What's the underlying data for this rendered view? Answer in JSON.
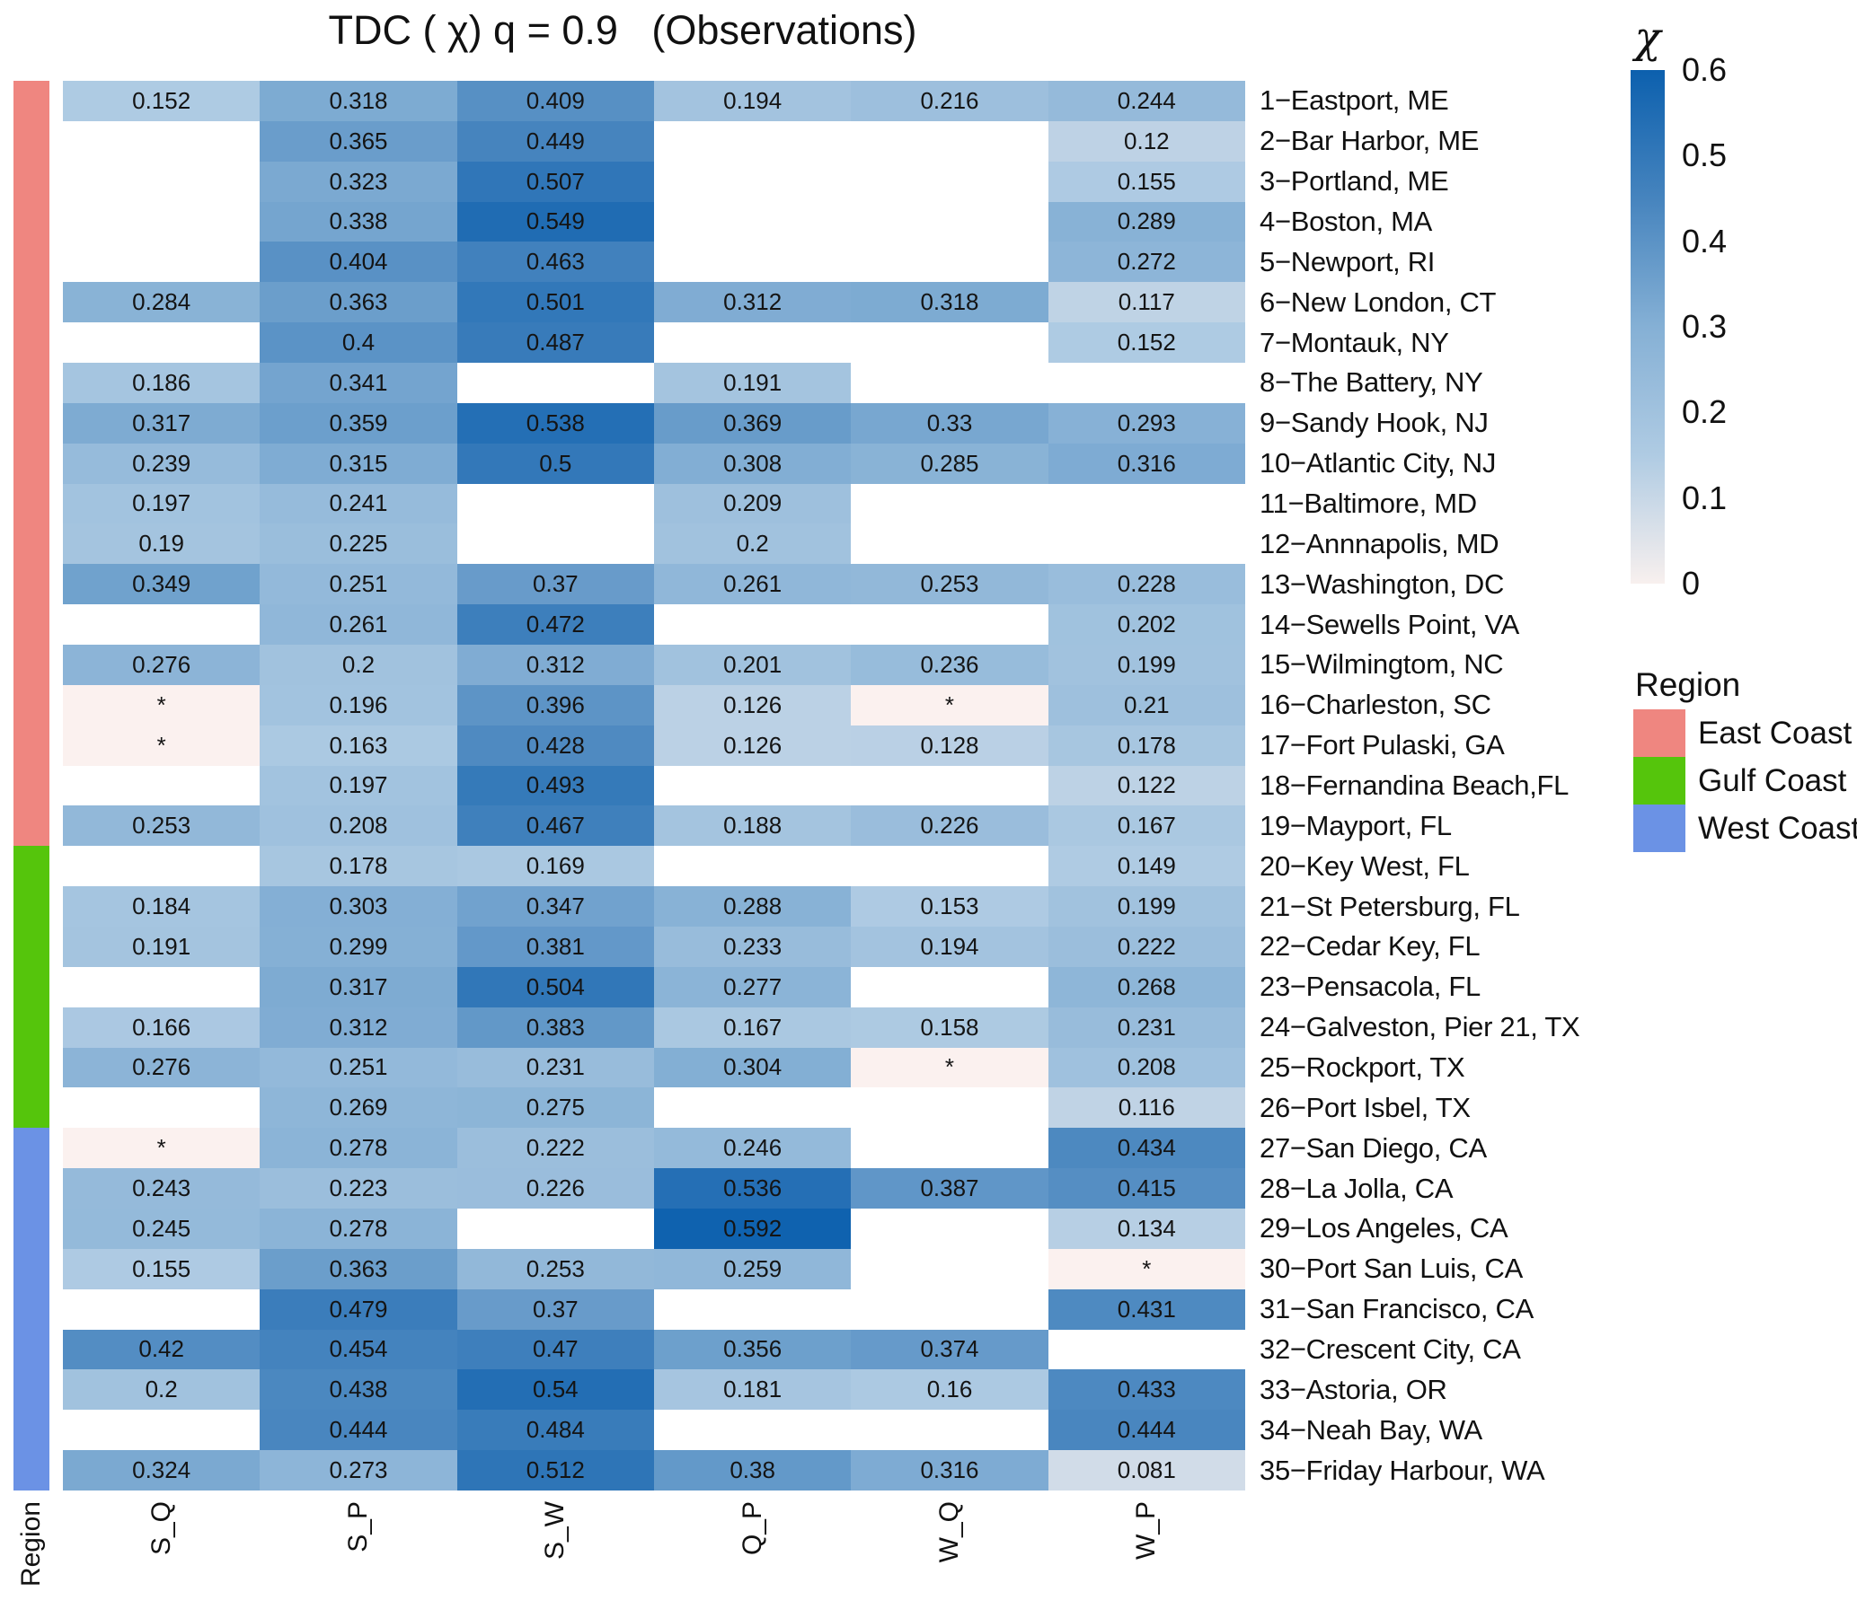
{
  "chart_data": {
    "type": "heatmap",
    "title": "TDC ( χ) q = 0.9   (Observations)",
    "columns": [
      "S_Q",
      "S_P",
      "S_W",
      "Q_P",
      "W_Q",
      "W_P"
    ],
    "region_axis_label": "Region",
    "not_significant_marker": "*",
    "rows": [
      {
        "label": "1−Eastport, ME",
        "region": "East Coast",
        "values": [
          "0.152",
          "0.318",
          "0.409",
          "0.194",
          "0.216",
          "0.244"
        ]
      },
      {
        "label": "2−Bar Harbor, ME",
        "region": "East Coast",
        "values": [
          null,
          "0.365",
          "0.449",
          null,
          null,
          "0.12"
        ]
      },
      {
        "label": "3−Portland, ME",
        "region": "East Coast",
        "values": [
          null,
          "0.323",
          "0.507",
          null,
          null,
          "0.155"
        ]
      },
      {
        "label": "4−Boston, MA",
        "region": "East Coast",
        "values": [
          null,
          "0.338",
          "0.549",
          null,
          null,
          "0.289"
        ]
      },
      {
        "label": "5−Newport, RI",
        "region": "East Coast",
        "values": [
          null,
          "0.404",
          "0.463",
          null,
          null,
          "0.272"
        ]
      },
      {
        "label": "6−New London, CT",
        "region": "East Coast",
        "values": [
          "0.284",
          "0.363",
          "0.501",
          "0.312",
          "0.318",
          "0.117"
        ]
      },
      {
        "label": "7−Montauk, NY",
        "region": "East Coast",
        "values": [
          null,
          "0.4",
          "0.487",
          null,
          null,
          "0.152"
        ]
      },
      {
        "label": "8−The Battery, NY",
        "region": "East Coast",
        "values": [
          "0.186",
          "0.341",
          null,
          "0.191",
          null,
          null
        ]
      },
      {
        "label": "9−Sandy Hook, NJ",
        "region": "East Coast",
        "values": [
          "0.317",
          "0.359",
          "0.538",
          "0.369",
          "0.33",
          "0.293"
        ]
      },
      {
        "label": "10−Atlantic City, NJ",
        "region": "East Coast",
        "values": [
          "0.239",
          "0.315",
          "0.5",
          "0.308",
          "0.285",
          "0.316"
        ]
      },
      {
        "label": "11−Baltimore, MD",
        "region": "East Coast",
        "values": [
          "0.197",
          "0.241",
          null,
          "0.209",
          null,
          null
        ]
      },
      {
        "label": "12−Annnapolis, MD",
        "region": "East Coast",
        "values": [
          "0.19",
          "0.225",
          null,
          "0.2",
          null,
          null
        ]
      },
      {
        "label": "13−Washington, DC",
        "region": "East Coast",
        "values": [
          "0.349",
          "0.251",
          "0.37",
          "0.261",
          "0.253",
          "0.228"
        ]
      },
      {
        "label": "14−Sewells Point, VA",
        "region": "East Coast",
        "values": [
          null,
          "0.261",
          "0.472",
          null,
          null,
          "0.202"
        ]
      },
      {
        "label": "15−Wilmingtom, NC",
        "region": "East Coast",
        "values": [
          "0.276",
          "0.2",
          "0.312",
          "0.201",
          "0.236",
          "0.199"
        ]
      },
      {
        "label": "16−Charleston, SC",
        "region": "East Coast",
        "values": [
          "*",
          "0.196",
          "0.396",
          "0.126",
          "*",
          "0.21"
        ]
      },
      {
        "label": "17−Fort Pulaski, GA",
        "region": "East Coast",
        "values": [
          "*",
          "0.163",
          "0.428",
          "0.126",
          "0.128",
          "0.178"
        ]
      },
      {
        "label": "18−Fernandina Beach,FL",
        "region": "East Coast",
        "values": [
          null,
          "0.197",
          "0.493",
          null,
          null,
          "0.122"
        ]
      },
      {
        "label": "19−Mayport, FL",
        "region": "East Coast",
        "values": [
          "0.253",
          "0.208",
          "0.467",
          "0.188",
          "0.226",
          "0.167"
        ]
      },
      {
        "label": "20−Key West, FL",
        "region": "Gulf Coast",
        "values": [
          null,
          "0.178",
          "0.169",
          null,
          null,
          "0.149"
        ]
      },
      {
        "label": "21−St Petersburg, FL",
        "region": "Gulf Coast",
        "values": [
          "0.184",
          "0.303",
          "0.347",
          "0.288",
          "0.153",
          "0.199"
        ]
      },
      {
        "label": "22−Cedar Key, FL",
        "region": "Gulf Coast",
        "values": [
          "0.191",
          "0.299",
          "0.381",
          "0.233",
          "0.194",
          "0.222"
        ]
      },
      {
        "label": "23−Pensacola, FL",
        "region": "Gulf Coast",
        "values": [
          null,
          "0.317",
          "0.504",
          "0.277",
          null,
          "0.268"
        ]
      },
      {
        "label": "24−Galveston, Pier 21, TX",
        "region": "Gulf Coast",
        "values": [
          "0.166",
          "0.312",
          "0.383",
          "0.167",
          "0.158",
          "0.231"
        ]
      },
      {
        "label": "25−Rockport, TX",
        "region": "Gulf Coast",
        "values": [
          "0.276",
          "0.251",
          "0.231",
          "0.304",
          "*",
          "0.208"
        ]
      },
      {
        "label": "26−Port Isbel, TX",
        "region": "Gulf Coast",
        "values": [
          null,
          "0.269",
          "0.275",
          null,
          null,
          "0.116"
        ]
      },
      {
        "label": "27−San Diego, CA",
        "region": "West Coast",
        "values": [
          "*",
          "0.278",
          "0.222",
          "0.246",
          null,
          "0.434"
        ]
      },
      {
        "label": "28−La Jolla, CA",
        "region": "West Coast",
        "values": [
          "0.243",
          "0.223",
          "0.226",
          "0.536",
          "0.387",
          "0.415"
        ]
      },
      {
        "label": "29−Los Angeles, CA",
        "region": "West Coast",
        "values": [
          "0.245",
          "0.278",
          null,
          "0.592",
          null,
          "0.134"
        ]
      },
      {
        "label": "30−Port San Luis, CA",
        "region": "West Coast",
        "values": [
          "0.155",
          "0.363",
          "0.253",
          "0.259",
          null,
          "*"
        ]
      },
      {
        "label": "31−San Francisco, CA",
        "region": "West Coast",
        "values": [
          null,
          "0.479",
          "0.37",
          null,
          null,
          "0.431"
        ]
      },
      {
        "label": "32−Crescent City, CA",
        "region": "West Coast",
        "values": [
          "0.42",
          "0.454",
          "0.47",
          "0.356",
          "0.374",
          null
        ]
      },
      {
        "label": "33−Astoria, OR",
        "region": "West Coast",
        "values": [
          "0.2",
          "0.438",
          "0.54",
          "0.181",
          "0.16",
          "0.433"
        ]
      },
      {
        "label": "34−Neah Bay, WA",
        "region": "West Coast",
        "values": [
          null,
          "0.444",
          "0.484",
          null,
          null,
          "0.444"
        ]
      },
      {
        "label": "35−Friday Harbour, WA",
        "region": "West Coast",
        "values": [
          "0.324",
          "0.273",
          "0.512",
          "0.38",
          "0.316",
          "0.081"
        ]
      }
    ],
    "colorbar": {
      "title": "χ",
      "min": 0,
      "max": 0.6,
      "ticks": [
        {
          "label": "0.6",
          "value": 0.6
        },
        {
          "label": "0.5",
          "value": 0.5
        },
        {
          "label": "0.4",
          "value": 0.4
        },
        {
          "label": "0.3",
          "value": 0.3
        },
        {
          "label": "0.2",
          "value": 0.2
        },
        {
          "label": "0.1",
          "value": 0.1
        },
        {
          "label": "0",
          "value": 0.0
        }
      ]
    },
    "region_legend": {
      "title": "Region",
      "entries": [
        {
          "label": "East Coast",
          "color": "#EF8680"
        },
        {
          "label": "Gulf Coast",
          "color": "#55C50C"
        },
        {
          "label": "West Coast",
          "color": "#6B92E5"
        }
      ]
    },
    "colors": {
      "heat_ramp": [
        [
          0.0,
          "#f8f0ee"
        ],
        [
          0.15,
          "#afcbe3"
        ],
        [
          0.3,
          "#85b0d5"
        ],
        [
          0.45,
          "#4684be"
        ],
        [
          0.6,
          "#0c60ae"
        ]
      ],
      "star_cell": "#fbf1ef",
      "missing_cell": "#ffffff",
      "text": "#141414"
    },
    "legend_position": "right",
    "grid": false
  }
}
